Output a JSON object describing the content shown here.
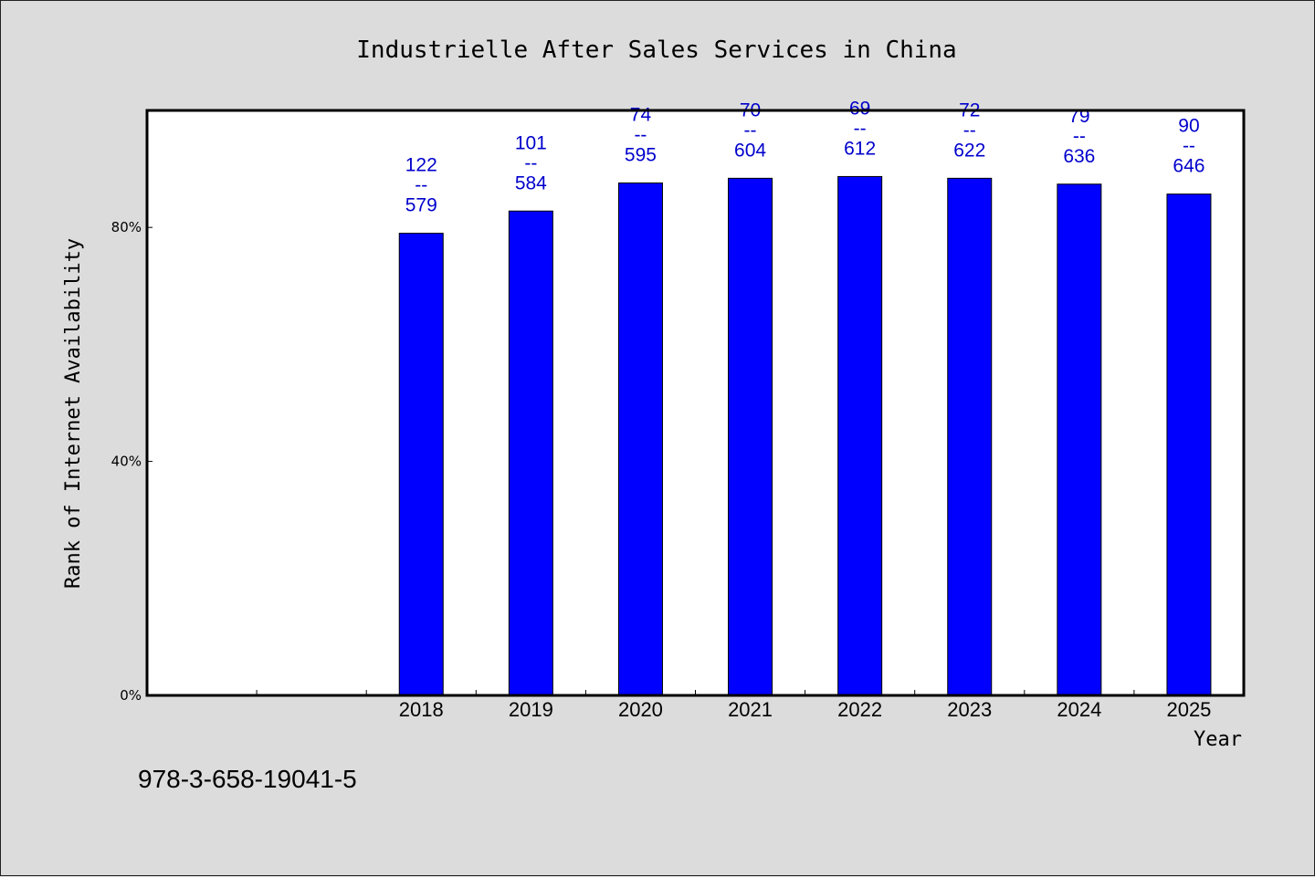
{
  "chart_data": {
    "type": "bar",
    "title": "Industrielle After Sales Services in China",
    "xlabel": "Year",
    "ylabel": "Rank of Internet Availability",
    "categories": [
      "",
      "",
      "2018",
      "2019",
      "2020",
      "2021",
      "2022",
      "2023",
      "2024",
      "2025"
    ],
    "values": [
      null,
      null,
      79,
      82.8,
      87.6,
      88.4,
      88.7,
      88.4,
      87.4,
      85.7
    ],
    "data_labels": [
      null,
      null,
      [
        "122",
        "--",
        "579"
      ],
      [
        "101",
        "--",
        "584"
      ],
      [
        "74",
        "--",
        "595"
      ],
      [
        "70",
        "--",
        "604"
      ],
      [
        "69",
        "--",
        "612"
      ],
      [
        "72",
        "--",
        "622"
      ],
      [
        "79",
        "--",
        "636"
      ],
      [
        "90",
        "--",
        "646"
      ]
    ],
    "yticks": [
      {
        "value": 0,
        "label": "0%"
      },
      {
        "value": 40,
        "label": "40%"
      },
      {
        "value": 80,
        "label": "80%"
      }
    ],
    "ylim": [
      0,
      100
    ],
    "bar_color": "#0000ff",
    "label_color": "#0000cc",
    "grid": false,
    "legend": "none"
  },
  "footer": {
    "isbn": "978-3-658-19041-5"
  }
}
